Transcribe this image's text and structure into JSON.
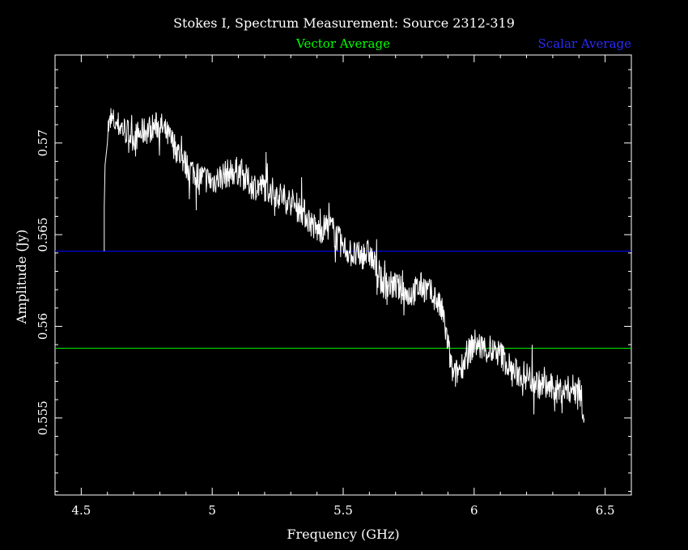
{
  "chart_data": {
    "type": "line",
    "title": "Stokes I, Spectrum Measurement: Source 2312-319",
    "xlabel": "Frequency (GHz)",
    "ylabel": "Amplitude (Jy)",
    "xlim": [
      4.4,
      6.6
    ],
    "ylim": [
      0.5508,
      0.5748
    ],
    "x_ticks": [
      4.5,
      5,
      5.5,
      6,
      6.5
    ],
    "x_tick_labels": [
      "4.5",
      "5",
      "5.5",
      "6",
      "6.5"
    ],
    "y_ticks": [
      0.555,
      0.56,
      0.565,
      0.57
    ],
    "y_tick_labels": [
      "0.555",
      "0.56",
      "0.565",
      "0.57"
    ],
    "grid": false,
    "legend_position": "top",
    "series": [
      {
        "name": "",
        "color": "#ffffff",
        "style": "noisy-line",
        "x": [
          4.6,
          4.62,
          4.65,
          4.7,
          4.75,
          4.8,
          4.85,
          4.9,
          4.95,
          5.0,
          5.05,
          5.1,
          5.15,
          5.2,
          5.25,
          5.3,
          5.35,
          5.4,
          5.45,
          5.5,
          5.55,
          5.6,
          5.65,
          5.7,
          5.75,
          5.8,
          5.85,
          5.88,
          5.9,
          5.92,
          5.95,
          6.0,
          6.05,
          6.1,
          6.15,
          6.2,
          6.25,
          6.3,
          6.35,
          6.4,
          6.42
        ],
        "y": [
          0.5708,
          0.5712,
          0.5709,
          0.5703,
          0.5707,
          0.571,
          0.57,
          0.5688,
          0.5682,
          0.5679,
          0.5683,
          0.5685,
          0.5677,
          0.5676,
          0.5672,
          0.5668,
          0.5662,
          0.5652,
          0.5655,
          0.5643,
          0.5638,
          0.564,
          0.5623,
          0.5622,
          0.5617,
          0.5622,
          0.5616,
          0.5607,
          0.559,
          0.5572,
          0.5578,
          0.5591,
          0.5587,
          0.5585,
          0.5575,
          0.5573,
          0.5568,
          0.5566,
          0.5565,
          0.5567,
          0.5553
        ]
      }
    ],
    "reference_lines": [
      {
        "name": "Vector Average",
        "value": 0.5588,
        "color": "#00ff00"
      },
      {
        "name": "Scalar Average",
        "value": 0.5641,
        "color": "#0000ff"
      }
    ]
  }
}
